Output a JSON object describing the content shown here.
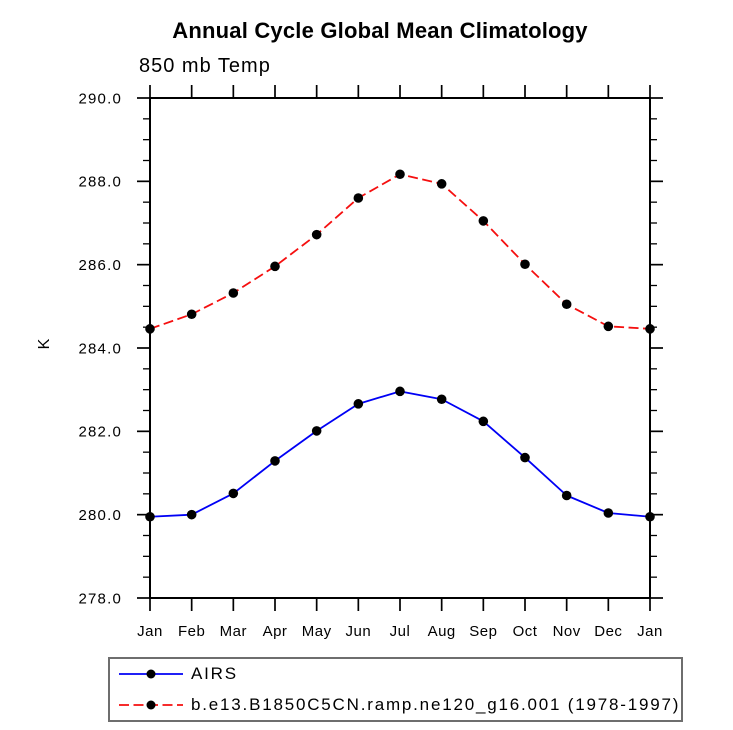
{
  "title": "Annual Cycle Global Mean Climatology",
  "subtitle": "850 mb Temp",
  "ylabel": "K",
  "colors": {
    "axis": "#000000",
    "marker": "#000000",
    "airs_line": "#0000f5",
    "model_line": "#f50f0f",
    "legend_border": "#6e6e6e"
  },
  "chart_data": {
    "type": "line",
    "title": "Annual Cycle Global Mean Climatology",
    "subtitle": "850 mb Temp",
    "xlabel": "",
    "ylabel": "K",
    "categories": [
      "Jan",
      "Feb",
      "Mar",
      "Apr",
      "May",
      "Jun",
      "Jul",
      "Aug",
      "Sep",
      "Oct",
      "Nov",
      "Dec",
      "Jan"
    ],
    "series": [
      {
        "name": "AIRS",
        "style": "solid",
        "color": "#0000f5",
        "marker": "filled-circle",
        "values": [
          279.95,
          280.0,
          280.51,
          281.29,
          282.01,
          282.66,
          282.96,
          282.77,
          282.24,
          281.37,
          280.46,
          280.04,
          279.95
        ]
      },
      {
        "name": "b.e13.B1850C5CN.ramp.ne120_g16.001 (1978-1997)",
        "style": "dashed",
        "color": "#f50f0f",
        "marker": "filled-circle",
        "values": [
          284.46,
          284.81,
          285.32,
          285.96,
          286.72,
          287.6,
          288.17,
          287.94,
          287.05,
          286.01,
          285.05,
          284.52,
          284.46
        ]
      }
    ],
    "ylim": [
      278.0,
      290.0
    ],
    "ytick_step": 2.0,
    "yminor_step": 0.5,
    "ytick_labels": [
      "290.0",
      "288.0",
      "286.0",
      "284.0",
      "282.0",
      "280.0",
      "278.0"
    ],
    "grid": false,
    "axis_box": true,
    "legend_position": "bottom-left-box"
  },
  "legend": {
    "items": [
      {
        "label": "AIRS"
      },
      {
        "label": "b.e13.B1850C5CN.ramp.ne120_g16.001 (1978-1997)"
      }
    ]
  }
}
